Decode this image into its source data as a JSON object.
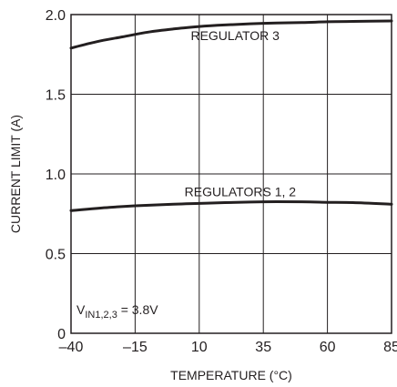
{
  "chart_data": {
    "type": "line",
    "xlabel": "TEMPERATURE (°C)",
    "ylabel": "CURRENT LIMIT (A)",
    "xlim": [
      -40,
      85
    ],
    "ylim": [
      0,
      2.0
    ],
    "x_ticks": [
      -40,
      -15,
      10,
      35,
      60,
      85
    ],
    "x_tick_labels": [
      "–40",
      "–15",
      "10",
      "35",
      "60",
      "85"
    ],
    "y_ticks": [
      0,
      0.5,
      1.0,
      1.5,
      2.0
    ],
    "y_tick_labels": [
      "0",
      "0.5",
      "1.0",
      "1.5",
      "2.0"
    ],
    "grid": true,
    "series": [
      {
        "name": "REGULATOR 3",
        "x": [
          -40,
          -30,
          -20,
          -10,
          0,
          10,
          20,
          35,
          50,
          60,
          70,
          85
        ],
        "y": [
          1.79,
          1.83,
          1.86,
          1.89,
          1.91,
          1.925,
          1.935,
          1.945,
          1.95,
          1.955,
          1.957,
          1.96
        ]
      },
      {
        "name": "REGULATORS 1, 2",
        "x": [
          -40,
          -25,
          -15,
          0,
          10,
          20,
          35,
          50,
          60,
          70,
          85
        ],
        "y": [
          0.77,
          0.79,
          0.8,
          0.81,
          0.815,
          0.82,
          0.825,
          0.825,
          0.822,
          0.82,
          0.81
        ]
      }
    ],
    "annotations": {
      "reg3_label": "REGULATOR 3",
      "reg12_label": "REGULATORS 1, 2",
      "vin_main": "V",
      "vin_sub": "IN1,2,3",
      "vin_value": " = 3.8V"
    }
  }
}
